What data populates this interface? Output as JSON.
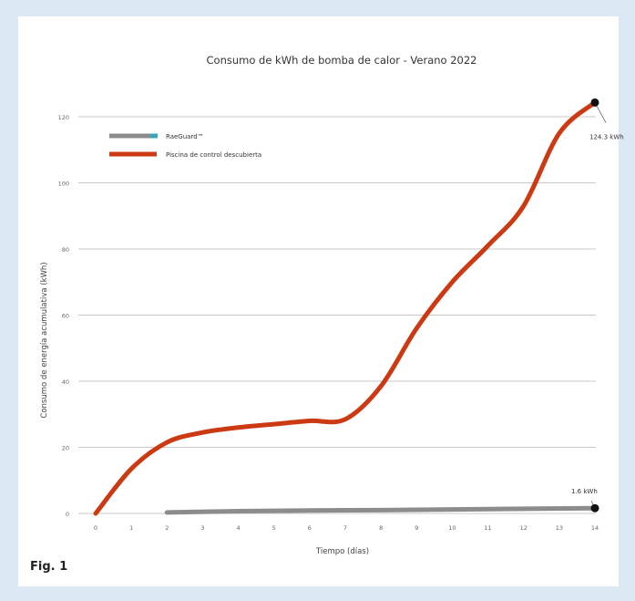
{
  "figure_label": "Fig. 1",
  "chart_data": {
    "type": "line",
    "title": "Consumo de kWh de bomba de calor - Verano 2022",
    "xlabel": "Tiempo (días)",
    "ylabel": "Consumo de energía acumulativa (kWh)",
    "x_ticks": [
      "0",
      "1",
      "2",
      "3",
      "4",
      "5",
      "6",
      "7",
      "8",
      "9",
      "10",
      "11",
      "12",
      "13",
      "14"
    ],
    "y_ticks": [
      "0",
      "20",
      "40",
      "60",
      "80",
      "100",
      "120"
    ],
    "xlim": [
      0,
      14
    ],
    "ylim": [
      0,
      120
    ],
    "grid": "horizontal",
    "legend_position": "top-left",
    "series": [
      {
        "name": "RaeGuard™",
        "color": "#8c8c8c",
        "accent": "#3aa6b9",
        "x": [
          2,
          4,
          6,
          8,
          10,
          12,
          14
        ],
        "y": [
          0.3,
          0.7,
          0.9,
          1.0,
          1.2,
          1.4,
          1.6
        ]
      },
      {
        "name": "Piscina de control descubierta",
        "color": "#cc3a14",
        "x": [
          0,
          1,
          2,
          3,
          4,
          5,
          6,
          7,
          8,
          9,
          10,
          11,
          12,
          13,
          14
        ],
        "y": [
          0,
          13.5,
          21.5,
          24.5,
          26,
          27,
          28,
          28.5,
          38.5,
          56,
          70,
          81,
          93,
          115,
          124.3
        ]
      }
    ],
    "annotations": [
      {
        "text": "124.3 kWh",
        "x": 14,
        "y": 124.3
      },
      {
        "text": "1.6 kWh",
        "x": 14,
        "y": 1.6
      }
    ]
  }
}
